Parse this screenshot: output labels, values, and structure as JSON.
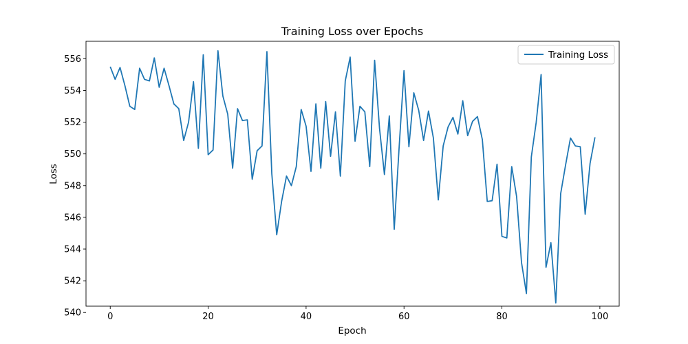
{
  "chart_data": {
    "type": "line",
    "title": "Training Loss over Epochs",
    "xlabel": "Epoch",
    "ylabel": "Loss",
    "xlim": [
      -4.95,
      103.95
    ],
    "ylim": [
      540.4,
      557.1
    ],
    "xticks": [
      0,
      20,
      40,
      60,
      80,
      100
    ],
    "yticks": [
      540,
      542,
      544,
      546,
      548,
      550,
      552,
      554,
      556
    ],
    "grid": false,
    "legend_position": "top-right",
    "series": [
      {
        "name": "Training Loss",
        "color": "#1f77b4",
        "x": [
          0,
          1,
          2,
          3,
          4,
          5,
          6,
          7,
          8,
          9,
          10,
          11,
          12,
          13,
          14,
          15,
          16,
          17,
          18,
          19,
          20,
          21,
          22,
          23,
          24,
          25,
          26,
          27,
          28,
          29,
          30,
          31,
          32,
          33,
          34,
          35,
          36,
          37,
          38,
          39,
          40,
          41,
          42,
          43,
          44,
          45,
          46,
          47,
          48,
          49,
          50,
          51,
          52,
          53,
          54,
          55,
          56,
          57,
          58,
          59,
          60,
          61,
          62,
          63,
          64,
          65,
          66,
          67,
          68,
          69,
          70,
          71,
          72,
          73,
          74,
          75,
          76,
          77,
          78,
          79,
          80,
          81,
          82,
          83,
          84,
          85,
          86,
          87,
          88,
          89,
          90,
          91,
          92,
          93,
          94,
          95,
          96,
          97,
          98,
          99
        ],
        "values": [
          555.5,
          554.7,
          555.45,
          554.3,
          553.0,
          552.8,
          555.4,
          554.7,
          554.6,
          556.05,
          554.2,
          555.4,
          554.3,
          553.15,
          552.85,
          550.85,
          552.0,
          554.55,
          550.35,
          556.25,
          549.95,
          550.25,
          556.5,
          553.65,
          552.5,
          549.1,
          552.85,
          552.1,
          552.15,
          548.4,
          550.2,
          550.5,
          556.45,
          548.75,
          544.9,
          547.0,
          548.6,
          548.0,
          549.2,
          552.8,
          551.75,
          548.9,
          553.15,
          549.1,
          553.3,
          549.85,
          552.65,
          548.6,
          554.6,
          556.1,
          550.8,
          553.0,
          552.65,
          549.2,
          555.9,
          551.6,
          548.7,
          552.4,
          545.25,
          550.4,
          555.25,
          550.45,
          553.85,
          552.75,
          550.85,
          552.7,
          551.0,
          547.1,
          550.5,
          551.7,
          552.3,
          551.25,
          553.35,
          551.15,
          552.05,
          552.35,
          550.9,
          547.0,
          547.05,
          549.35,
          544.8,
          544.7,
          549.2,
          547.3,
          543.15,
          541.2,
          549.8,
          552.0,
          555.0,
          542.85,
          544.4,
          540.6,
          547.5,
          549.3,
          551.0,
          550.5,
          550.45,
          546.2,
          549.4,
          551.05
        ]
      }
    ]
  }
}
